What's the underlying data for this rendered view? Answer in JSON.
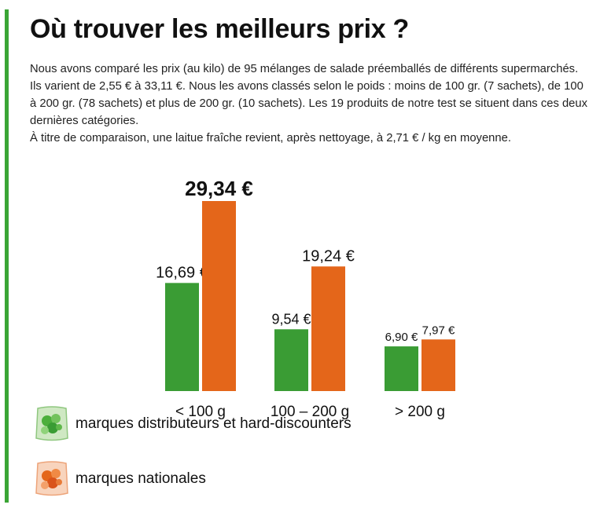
{
  "title": "Où trouver les meilleurs prix ?",
  "intro": {
    "line1": "Nous avons comparé les prix (au kilo) de 95 mélanges de salade préemballés de différents supermarchés. Ils varient de 2,55 € à 33,11 €. Nous les avons classés selon le poids : moins de 100 gr. (7 sachets), de 100 à 200 gr. (78 sachets) et plus de 200 gr. (10 sachets). Les 19 produits de notre test se situent dans ces deux dernières catégories.",
    "line2": "À titre de comparaison, une laitue fraîche revient, après nettoyage, à 2,71 € / kg en moyenne."
  },
  "chart_data": {
    "type": "bar",
    "categories": [
      "< 100 g",
      "100 – 200 g",
      "> 200 g"
    ],
    "series": [
      {
        "name": "marques distributeurs et hard-discounters",
        "color": "#3a9c34",
        "values": [
          16.69,
          9.54,
          6.9
        ],
        "labels": [
          "16,69 €",
          "9,54 €",
          "6,90 €"
        ]
      },
      {
        "name": "marques nationales",
        "color": "#e4661a",
        "values": [
          29.34,
          19.24,
          7.97
        ],
        "labels": [
          "29,34 €",
          "19,24 €",
          "7,97 €"
        ]
      }
    ],
    "ylim": [
      0,
      29.34
    ],
    "xlabel": "",
    "ylabel": ""
  },
  "legend": {
    "items": [
      {
        "label": "marques distributeurs et hard-discounters",
        "icon": "green-salad-bag-icon",
        "color": "#3a9c34"
      },
      {
        "label": "marques nationales",
        "icon": "orange-salad-bag-icon",
        "color": "#e4661a"
      }
    ]
  }
}
